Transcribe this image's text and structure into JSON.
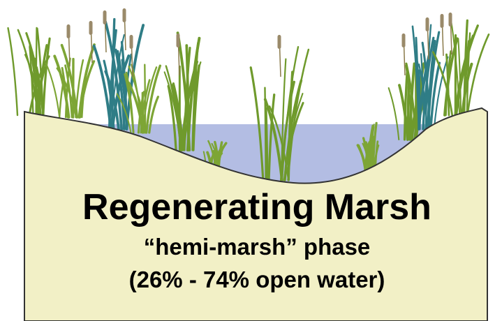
{
  "title": "Regenerating Marsh",
  "subtitle": "“hemi-marsh” phase",
  "caption": "(26% - 74% open water)"
}
